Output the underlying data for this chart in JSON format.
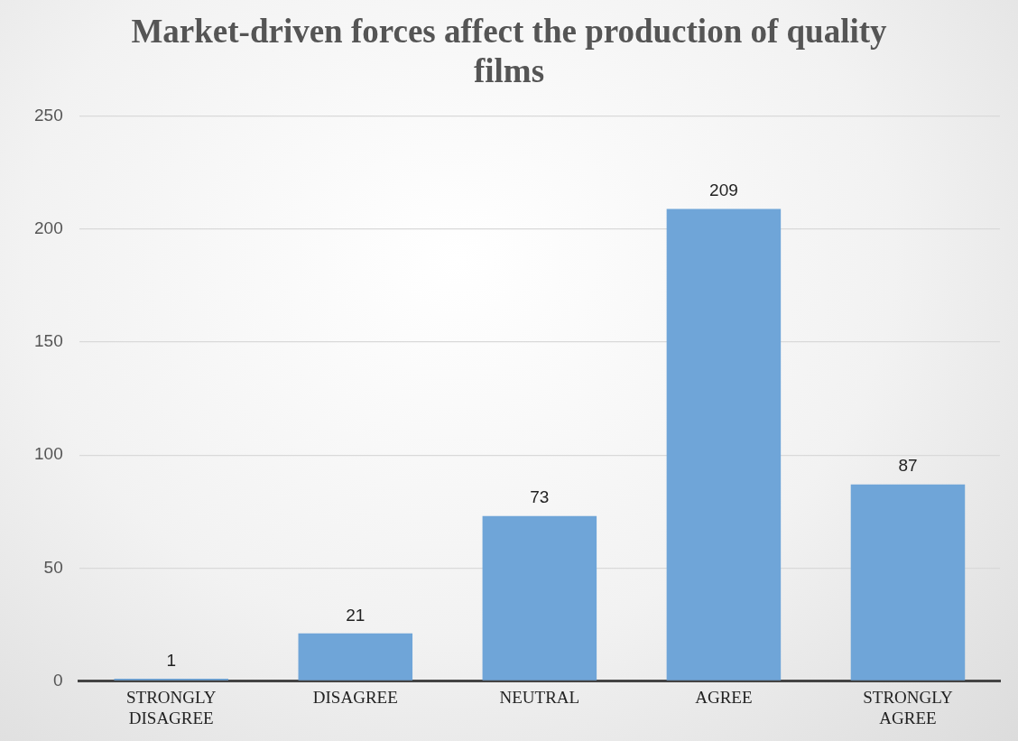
{
  "chart_data": {
    "type": "bar",
    "title": "Market-driven forces affect the production of quality films",
    "categories": [
      "STRONGLY DISAGREE",
      "DISAGREE",
      "NEUTRAL",
      "AGREE",
      "STRONGLY AGREE"
    ],
    "values": [
      1,
      21,
      73,
      209,
      87
    ],
    "color": "#6fa5d8",
    "ylim": [
      0,
      250
    ],
    "yticks": [
      0,
      50,
      100,
      150,
      200,
      250
    ],
    "grid": "y",
    "data_labels": true,
    "legend": false
  }
}
